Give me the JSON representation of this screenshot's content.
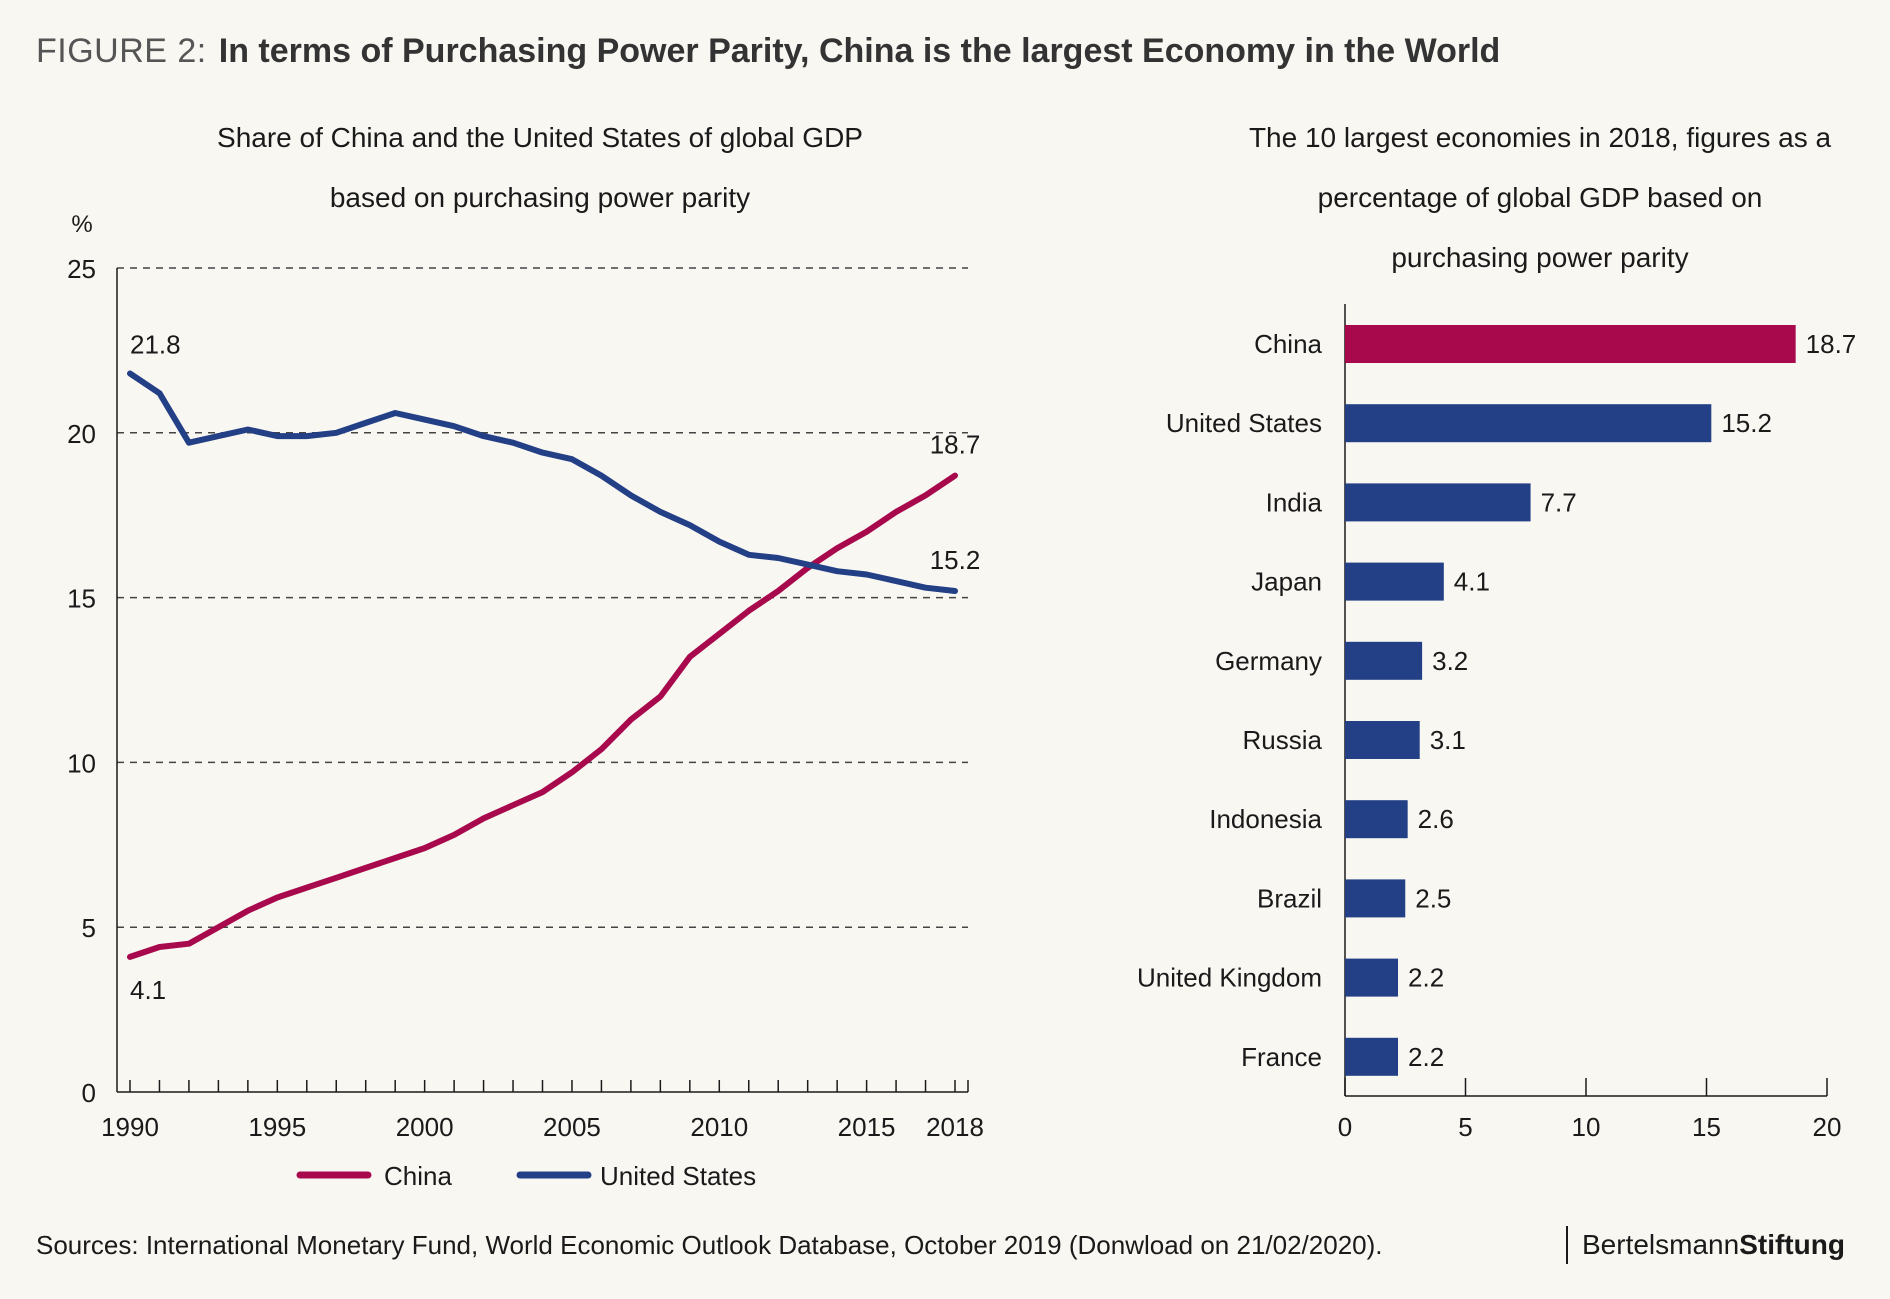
{
  "figure": {
    "label": "FIGURE 2:",
    "title": "In terms of Purchasing Power Parity, China is the largest Economy in the World"
  },
  "left_chart": {
    "subtitle_line1": "Share of China and the United States of global GDP",
    "subtitle_line2": "based on purchasing power parity"
  },
  "right_chart": {
    "subtitle_line1": "The 10 largest economies in 2018, figures as a",
    "subtitle_line2": "percentage of global GDP based on",
    "subtitle_line3": "purchasing power parity"
  },
  "source": "Sources: International Monetary Fund, World Economic Outlook Database, October 2019 (Donwload on 21/02/2020).",
  "brand": {
    "part1": "Bertelsmann",
    "part2": "Stiftung"
  },
  "colors": {
    "china": "#a8094d",
    "us": "#233f85",
    "grid": "#444444"
  },
  "chart_data": [
    {
      "type": "line",
      "title": "Share of China and the United States of global GDP based on purchasing power parity",
      "ylabel": "%",
      "xlim": [
        1990,
        2018
      ],
      "ylim": [
        0,
        25
      ],
      "yticks": [
        0,
        5,
        10,
        15,
        20,
        25
      ],
      "xtick_labels": [
        "1990",
        "1995",
        "2000",
        "2005",
        "2010",
        "2015",
        "2018"
      ],
      "grid": "horizontal dashed",
      "legend": "bottom",
      "x": [
        1990,
        1991,
        1992,
        1993,
        1994,
        1995,
        1996,
        1997,
        1998,
        1999,
        2000,
        2001,
        2002,
        2003,
        2004,
        2005,
        2006,
        2007,
        2008,
        2009,
        2010,
        2011,
        2012,
        2013,
        2014,
        2015,
        2016,
        2017,
        2018
      ],
      "series": [
        {
          "name": "China",
          "color": "#a8094d",
          "values": [
            4.1,
            4.4,
            4.5,
            5.0,
            5.5,
            5.9,
            6.2,
            6.5,
            6.8,
            7.1,
            7.4,
            7.8,
            8.3,
            8.7,
            9.1,
            9.7,
            10.4,
            11.3,
            12.0,
            13.2,
            13.9,
            14.6,
            15.2,
            15.9,
            16.5,
            17.0,
            17.6,
            18.1,
            18.7
          ],
          "start_label": "4.1",
          "end_label": "18.7"
        },
        {
          "name": "United States",
          "color": "#233f85",
          "values": [
            21.8,
            21.2,
            19.7,
            19.9,
            20.1,
            19.9,
            19.9,
            20.0,
            20.3,
            20.6,
            20.4,
            20.2,
            19.9,
            19.7,
            19.4,
            19.2,
            18.7,
            18.1,
            17.6,
            17.2,
            16.7,
            16.3,
            16.2,
            16.0,
            15.8,
            15.7,
            15.5,
            15.3,
            15.2
          ],
          "start_label": "21.8",
          "end_label": "15.2"
        }
      ]
    },
    {
      "type": "bar",
      "orientation": "horizontal",
      "title": "The 10 largest economies in 2018, figures as a percentage of global GDP based on purchasing power parity",
      "xlim": [
        0,
        20
      ],
      "xticks": [
        0,
        5,
        10,
        15,
        20
      ],
      "categories": [
        "China",
        "United States",
        "India",
        "Japan",
        "Germany",
        "Russia",
        "Indonesia",
        "Brazil",
        "United Kingdom",
        "France"
      ],
      "values": [
        18.7,
        15.2,
        7.7,
        4.1,
        3.2,
        3.1,
        2.6,
        2.5,
        2.2,
        2.2
      ],
      "value_labels": [
        "18.7",
        "15.2",
        "7.7",
        "4.1",
        "3.2",
        "3.1",
        "2.6",
        "2.5",
        "2.2",
        "2.2"
      ],
      "highlight": "China"
    }
  ]
}
